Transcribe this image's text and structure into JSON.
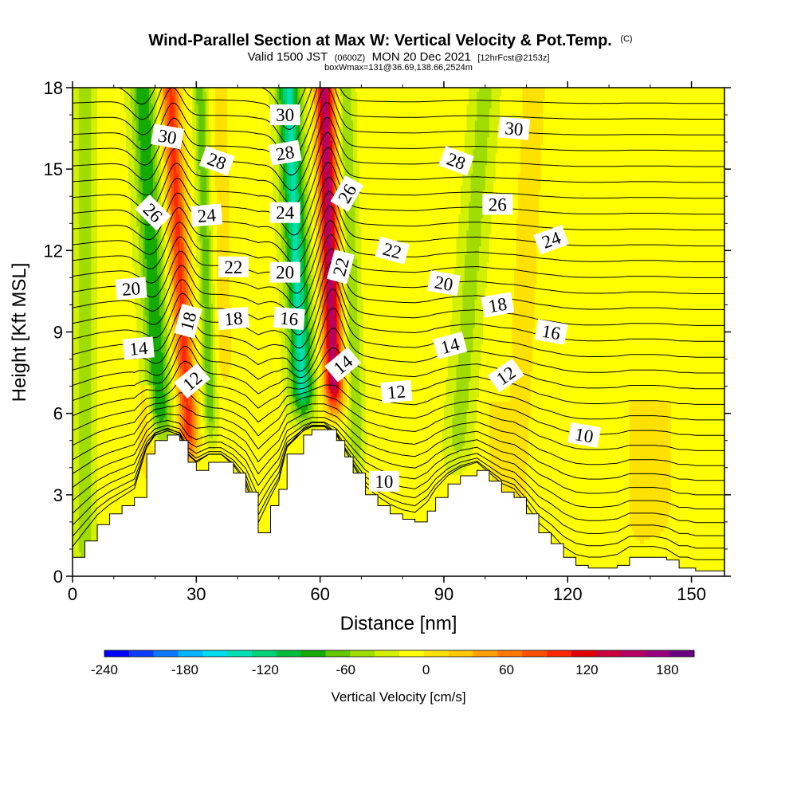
{
  "chart_data": {
    "type": "heatmap",
    "title": "Wind-Parallel Section at Max W: Vertical Velocity & Pot.Temp.",
    "title_mark": "(C)",
    "subtitle": "Valid 1500 JST",
    "subtitle_utc": "(0600Z)",
    "subtitle_date": "MON 20 Dec 2021",
    "subtitle_fcst": "[12hrFcst@2153z]",
    "box_info": "boxWmax=131@36.69,138.66,2524m",
    "xlabel": "Distance [nm]",
    "ylabel": "Height [Kft MSL]",
    "xlim": [
      0,
      158
    ],
    "ylim": [
      0,
      18
    ],
    "x_ticks": [
      0,
      30,
      60,
      90,
      120,
      150
    ],
    "y_ticks": [
      0,
      3,
      6,
      9,
      12,
      15,
      18
    ],
    "colorbar": {
      "label": "Vertical Velocity [cm/s]",
      "range": [
        -240,
        200
      ],
      "step": 20,
      "ticks": [
        -240,
        -180,
        -120,
        -60,
        0,
        60,
        120,
        180
      ],
      "colors": [
        "#0000ff",
        "#0a3cff",
        "#0a78ff",
        "#00b4ff",
        "#00dcf0",
        "#00e0b4",
        "#00d278",
        "#00be3c",
        "#14aa00",
        "#64c800",
        "#a0dc00",
        "#d2f000",
        "#ffff00",
        "#ffe100",
        "#ffc800",
        "#ffa000",
        "#ff7800",
        "#ff5000",
        "#ff2800",
        "#e10000",
        "#c8003c",
        "#b40064",
        "#96007d",
        "#690082"
      ]
    },
    "terrain": {
      "x": [
        0,
        3,
        6,
        9,
        12,
        15,
        18,
        20,
        23,
        26,
        28,
        30,
        33,
        36,
        39,
        42,
        45,
        48,
        50,
        52,
        56,
        58,
        61,
        64,
        66,
        68,
        71,
        74,
        77,
        80,
        83,
        86,
        88,
        91,
        94,
        98,
        101,
        104,
        107,
        110,
        113,
        116,
        119,
        122,
        125,
        128,
        132,
        135,
        138,
        141,
        144,
        147,
        149,
        151,
        153,
        155,
        158
      ],
      "y": [
        0.7,
        1.3,
        1.9,
        2.3,
        2.6,
        2.9,
        4.5,
        5.0,
        5.2,
        5.0,
        4.2,
        3.9,
        4.2,
        4.2,
        3.8,
        3.1,
        1.6,
        2.6,
        3.2,
        4.5,
        5.2,
        5.4,
        5.4,
        5.0,
        4.4,
        3.8,
        3.0,
        2.6,
        2.3,
        2.1,
        2.0,
        2.4,
        2.9,
        3.4,
        3.7,
        3.9,
        3.5,
        3.1,
        2.9,
        2.3,
        1.6,
        1.2,
        0.7,
        0.4,
        0.3,
        0.3,
        0.4,
        0.7,
        0.7,
        0.7,
        0.6,
        0.3,
        0.3,
        0.2,
        0.2,
        0.2,
        0.2
      ]
    },
    "w_features": [
      {
        "x": 3,
        "z0": 0,
        "z1": 18,
        "sigma": 1.5,
        "amp": -40,
        "tilt": 0
      },
      {
        "x": 21.5,
        "z0": 5,
        "z1": 18,
        "sigma": 1.9,
        "amp": -85,
        "tilt": -0.35
      },
      {
        "x": 28.5,
        "z0": 4.2,
        "z1": 18,
        "sigma": 1.6,
        "amp": 120,
        "tilt": -0.35
      },
      {
        "x": 33.5,
        "z0": 5,
        "z1": 18,
        "sigma": 1.0,
        "amp": -60,
        "tilt": -0.2
      },
      {
        "x": 37,
        "z0": 7,
        "z1": 18,
        "sigma": 1.2,
        "amp": 35,
        "tilt": -0.1
      },
      {
        "x": 56,
        "z0": 5.8,
        "z1": 18,
        "sigma": 1.9,
        "amp": -130,
        "tilt": -0.3
      },
      {
        "x": 63.5,
        "z0": 6.0,
        "z1": 18,
        "sigma": 1.6,
        "amp": 185,
        "tilt": -0.2
      },
      {
        "x": 69,
        "z0": 4,
        "z1": 18,
        "sigma": 1.2,
        "amp": -45,
        "tilt": -0.2
      },
      {
        "x": 93,
        "z0": 4,
        "z1": 18,
        "sigma": 2.0,
        "amp": -35,
        "tilt": 0.5
      },
      {
        "x": 107,
        "z0": 2,
        "z1": 18,
        "sigma": 2.2,
        "amp": 30,
        "tilt": 0.3
      },
      {
        "x": 138,
        "z0": 1,
        "z1": 6,
        "sigma": 2.5,
        "amp": 30,
        "tilt": 0
      },
      {
        "x": 143,
        "z0": 1.5,
        "z1": 6,
        "sigma": 1.5,
        "amp": 30,
        "tilt": 0
      },
      {
        "x": 18,
        "z0": 3.5,
        "z1": 6.5,
        "sigma": 1.5,
        "amp": 35,
        "tilt": 0
      },
      {
        "x": 103,
        "z0": 3,
        "z1": 6,
        "sigma": 1.5,
        "amp": 30,
        "tilt": 0
      }
    ],
    "theta_contours_C": [
      0,
      1,
      2,
      3,
      4,
      5,
      6,
      7,
      8,
      9,
      10,
      11,
      12,
      13,
      14,
      15,
      16,
      17,
      18,
      19,
      20,
      21,
      22,
      23,
      24,
      25,
      26,
      27,
      28,
      29,
      30,
      31
    ],
    "contour_labels": [
      {
        "text": "30",
        "x": 23,
        "y": 16.2,
        "angle": 10
      },
      {
        "text": "28",
        "x": 35,
        "y": 15.3,
        "angle": 20
      },
      {
        "text": "26",
        "x": 19.5,
        "y": 13.4,
        "angle": 45
      },
      {
        "text": "24",
        "x": 32.5,
        "y": 13.3,
        "angle": -5
      },
      {
        "text": "22",
        "x": 39,
        "y": 11.4,
        "angle": 0
      },
      {
        "text": "20",
        "x": 14.2,
        "y": 10.6,
        "angle": -5
      },
      {
        "text": "18",
        "x": 28,
        "y": 9.4,
        "angle": -75
      },
      {
        "text": "18",
        "x": 39,
        "y": 9.5,
        "angle": -5
      },
      {
        "text": "14",
        "x": 16,
        "y": 8.4,
        "angle": -5
      },
      {
        "text": "12",
        "x": 29,
        "y": 7.2,
        "angle": -40
      },
      {
        "text": "30",
        "x": 51.5,
        "y": 17.0,
        "angle": 0
      },
      {
        "text": "28",
        "x": 51.5,
        "y": 15.6,
        "angle": -10
      },
      {
        "text": "24",
        "x": 51.5,
        "y": 13.4,
        "angle": 0
      },
      {
        "text": "20",
        "x": 51.5,
        "y": 11.2,
        "angle": 0
      },
      {
        "text": "16",
        "x": 52.5,
        "y": 9.5,
        "angle": 5
      },
      {
        "text": "26",
        "x": 66.5,
        "y": 14.1,
        "angle": -60
      },
      {
        "text": "22",
        "x": 65,
        "y": 11.4,
        "angle": -75
      },
      {
        "text": "14",
        "x": 65.5,
        "y": 7.8,
        "angle": -40
      },
      {
        "text": "10",
        "x": 75.5,
        "y": 3.5,
        "angle": 0
      },
      {
        "text": "12",
        "x": 78.5,
        "y": 6.8,
        "angle": -5
      },
      {
        "text": "22",
        "x": 77.5,
        "y": 12.0,
        "angle": 15
      },
      {
        "text": "20",
        "x": 90,
        "y": 10.8,
        "angle": 10
      },
      {
        "text": "14",
        "x": 91.5,
        "y": 8.5,
        "angle": -15
      },
      {
        "text": "28",
        "x": 93,
        "y": 15.3,
        "angle": 20
      },
      {
        "text": "26",
        "x": 103,
        "y": 13.7,
        "angle": 0
      },
      {
        "text": "30",
        "x": 107,
        "y": 16.5,
        "angle": 5
      },
      {
        "text": "24",
        "x": 116,
        "y": 12.4,
        "angle": -20
      },
      {
        "text": "18",
        "x": 103,
        "y": 10.0,
        "angle": -10
      },
      {
        "text": "16",
        "x": 116,
        "y": 9.0,
        "angle": 10
      },
      {
        "text": "12",
        "x": 105,
        "y": 7.4,
        "angle": -35
      },
      {
        "text": "10",
        "x": 124,
        "y": 5.2,
        "angle": 10
      }
    ]
  }
}
